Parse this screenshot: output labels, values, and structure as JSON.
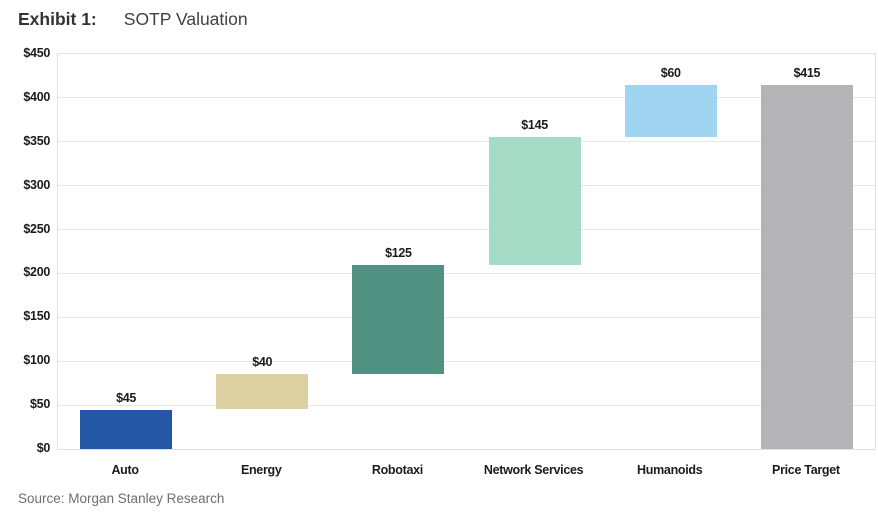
{
  "header": {
    "exhibit_label": "Exhibit 1:",
    "title": "SOTP Valuation"
  },
  "source": "Source: Morgan Stanley Research",
  "chart_data": {
    "type": "bar",
    "subtype": "waterfall",
    "title": "SOTP Valuation",
    "xlabel": "",
    "ylabel": "",
    "ylim": [
      0,
      450
    ],
    "ytick_step": 50,
    "ytick_prefix": "$",
    "grid": true,
    "legend": "none",
    "categories": [
      "Auto",
      "Energy",
      "Robotaxi",
      "Network Services",
      "Humanoids",
      "Price Target"
    ],
    "values": [
      45,
      40,
      125,
      145,
      60,
      415
    ],
    "value_labels": [
      "$45",
      "$40",
      "$125",
      "$145",
      "$60",
      "$415"
    ],
    "is_total": [
      false,
      false,
      false,
      false,
      false,
      true
    ],
    "cumulative_ranges": [
      [
        0,
        45
      ],
      [
        45,
        85
      ],
      [
        85,
        210
      ],
      [
        210,
        355
      ],
      [
        355,
        415
      ],
      [
        0,
        415
      ]
    ],
    "bar_colors": [
      "#2457A5",
      "#DDD1A1",
      "#509181",
      "#A6DCC7",
      "#A1D4F0",
      "#B4B4B6"
    ]
  },
  "colors": {
    "gridline": "#E7E7E7",
    "plot_border": "#E1E1E1",
    "axis_text": "#1c1c1c",
    "title_text": "#333333",
    "source_text": "#6e6e6e"
  }
}
